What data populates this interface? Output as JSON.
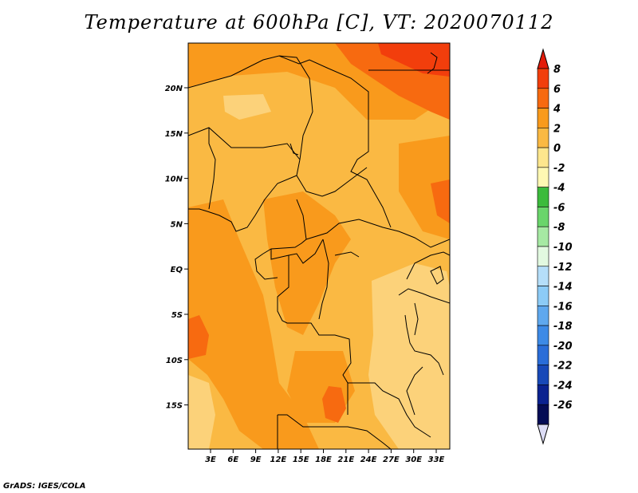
{
  "title": "Temperature at 600hPa [C], VT: 2020070112",
  "credit": "GrADS: IGES/COLA",
  "map": {
    "lat_ticks": [
      "20N",
      "15N",
      "10N",
      "5N",
      "EQ",
      "5S",
      "10S",
      "15S"
    ],
    "lon_ticks": [
      "3E",
      "6E",
      "9E",
      "12E",
      "15E",
      "18E",
      "21E",
      "24E",
      "27E",
      "30E",
      "33E"
    ],
    "colors": {
      "base": "#fab943",
      "light": "#fcd27a",
      "dark": "#f99a1c",
      "hot": "#f76a10",
      "hotter": "#f23e0c"
    }
  },
  "colorbar": {
    "labels": [
      "8",
      "6",
      "4",
      "2",
      "0",
      "-2",
      "-4",
      "-6",
      "-8",
      "-10",
      "-12",
      "-14",
      "-16",
      "-18",
      "-20",
      "-22",
      "-24",
      "-26"
    ],
    "colors": [
      "#e31b0a",
      "#f23e0c",
      "#f76a10",
      "#f99a1c",
      "#fab943",
      "#fde68d",
      "#fef8b3",
      "#3cbb3c",
      "#6ad56b",
      "#a6e9a3",
      "#e2f9e0",
      "#b5def9",
      "#8ccbf6",
      "#5fa8ee",
      "#3d8ae6",
      "#2a6dd8",
      "#1849b8",
      "#0a2290",
      "#040c55",
      "#dcdcf5"
    ]
  }
}
